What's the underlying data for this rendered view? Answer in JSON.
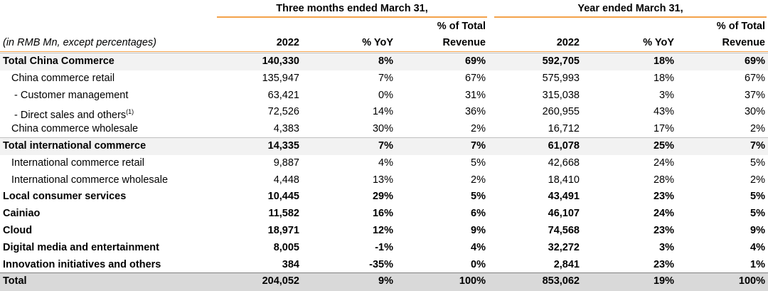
{
  "table": {
    "groups": [
      "Three months ended March 31,",
      "Year ended March 31,"
    ],
    "unit_note": "(in RMB Mn, except percentages)",
    "columns": [
      {
        "line1": "",
        "line2": "2022"
      },
      {
        "line1": "",
        "line2": "% YoY"
      },
      {
        "line1": "% of Total",
        "line2": "Revenue"
      },
      {
        "line1": "",
        "line2": "2022"
      },
      {
        "line1": "",
        "line2": "% YoY"
      },
      {
        "line1": "% of Total",
        "line2": "Revenue"
      }
    ],
    "rows": [
      {
        "label": "Total China Commerce",
        "cells": [
          "140,330",
          "8%",
          "69%",
          "592,705",
          "18%",
          "69%"
        ]
      },
      {
        "label": "China commerce retail",
        "cells": [
          "135,947",
          "7%",
          "67%",
          "575,993",
          "18%",
          "67%"
        ]
      },
      {
        "label": "- Customer management",
        "cells": [
          "63,421",
          "0%",
          "31%",
          "315,038",
          "3%",
          "37%"
        ]
      },
      {
        "label": "- Direct sales and others",
        "note": "(1)",
        "cells": [
          "72,526",
          "14%",
          "36%",
          "260,955",
          "43%",
          "30%"
        ]
      },
      {
        "label": "China commerce wholesale",
        "cells": [
          "4,383",
          "30%",
          "2%",
          "16,712",
          "17%",
          "2%"
        ]
      },
      {
        "label": "Total international commerce",
        "cells": [
          "14,335",
          "7%",
          "7%",
          "61,078",
          "25%",
          "7%"
        ]
      },
      {
        "label": "International commerce retail",
        "cells": [
          "9,887",
          "4%",
          "5%",
          "42,668",
          "24%",
          "5%"
        ]
      },
      {
        "label": "International commerce wholesale",
        "cells": [
          "4,448",
          "13%",
          "2%",
          "18,410",
          "28%",
          "2%"
        ]
      },
      {
        "label": "Local consumer services",
        "cells": [
          "10,445",
          "29%",
          "5%",
          "43,491",
          "23%",
          "5%"
        ]
      },
      {
        "label": "Cainiao",
        "cells": [
          "11,582",
          "16%",
          "6%",
          "46,107",
          "24%",
          "5%"
        ]
      },
      {
        "label": "Cloud",
        "cells": [
          "18,971",
          "12%",
          "9%",
          "74,568",
          "23%",
          "9%"
        ]
      },
      {
        "label": "Digital media and entertainment",
        "cells": [
          "8,005",
          "-1%",
          "4%",
          "32,272",
          "3%",
          "4%"
        ]
      },
      {
        "label": "Innovation initiatives and others",
        "cells": [
          "384",
          "-35%",
          "0%",
          "2,841",
          "23%",
          "1%"
        ]
      },
      {
        "label": "Total",
        "cells": [
          "204,052",
          "9%",
          "100%",
          "853,062",
          "19%",
          "100%"
        ]
      }
    ]
  }
}
